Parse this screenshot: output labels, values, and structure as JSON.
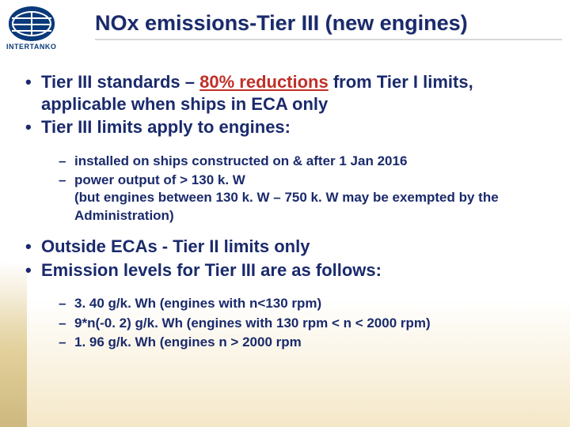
{
  "logo": {
    "text": "INTERTANKO"
  },
  "title": "NOx emissions-Tier III (new engines)",
  "bullets1a": [
    {
      "pre": "Tier III standards – ",
      "em": "80% reductions",
      "post": " from Tier I limits, applicable when ships in ECA only"
    },
    {
      "text": "Tier III limits apply to engines:"
    }
  ],
  "sub1": [
    "installed on ships constructed on & after 1 Jan 2016",
    "power output of > 130 k. W",
    "(but engines between 130 k. W – 750 k. W may be exempted by the Administration)"
  ],
  "bullets1b": [
    {
      "text": "Outside ECAs - Tier II limits only"
    },
    {
      "text": "Emission levels for Tier III are as follows:"
    }
  ],
  "sub2": [
    "3. 40 g/k. Wh (engines with n<130 rpm)",
    "9*n(-0. 2) g/k. Wh (engines with 130 rpm < n < 2000 rpm)",
    "1. 96 g/k. Wh (engines n > 2000 rpm"
  ]
}
